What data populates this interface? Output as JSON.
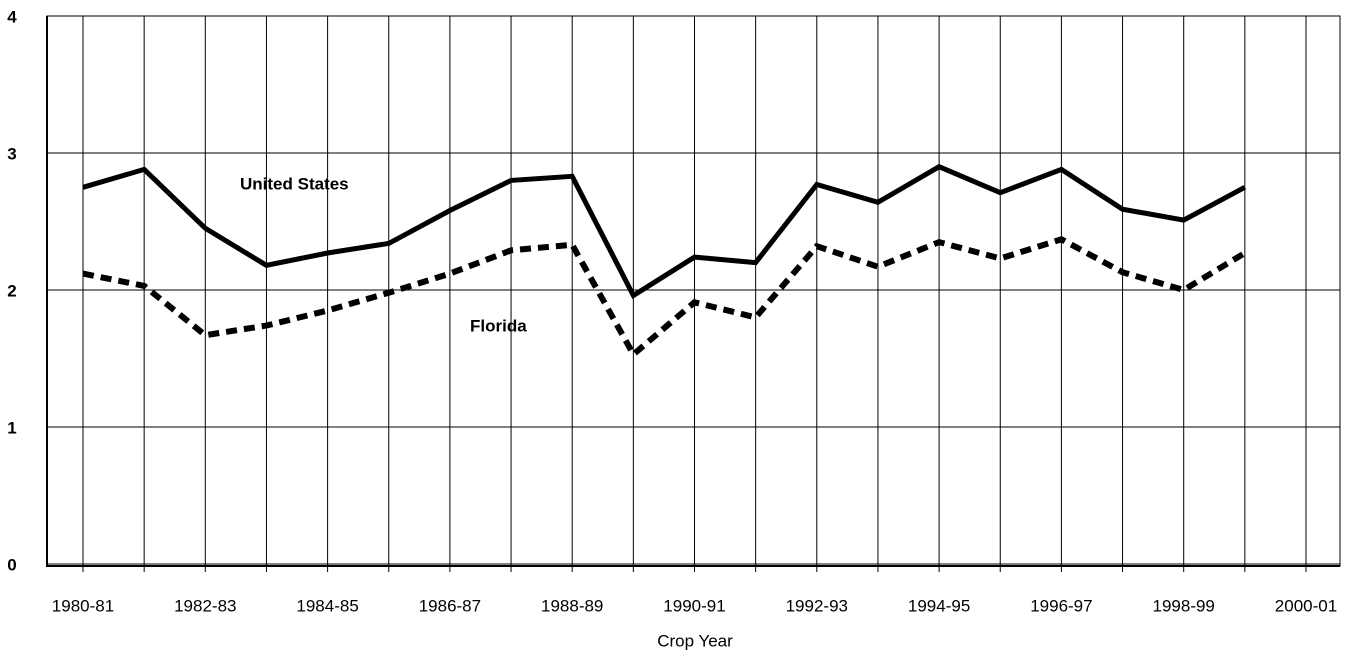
{
  "chart_data": {
    "type": "line",
    "x_label": "Crop Year",
    "categories": [
      "1980-81",
      null,
      "1982-83",
      null,
      "1984-85",
      null,
      "1986-87",
      null,
      "1988-89",
      null,
      "1990-91",
      null,
      "1992-93",
      null,
      "1994-95",
      null,
      "1996-97",
      null,
      "1998-99",
      null,
      "2000-01"
    ],
    "series": [
      {
        "name": "United States",
        "color": "#000000",
        "dash": false,
        "values": [
          2.75,
          2.88,
          2.45,
          2.18,
          2.27,
          2.34,
          2.58,
          2.8,
          2.83,
          1.96,
          2.24,
          2.2,
          2.77,
          2.64,
          2.9,
          2.71,
          2.88,
          2.59,
          2.51,
          2.75,
          null
        ]
      },
      {
        "name": "Florida",
        "color": "#000000",
        "dash": true,
        "values": [
          2.12,
          2.03,
          1.67,
          1.74,
          1.85,
          1.98,
          2.12,
          2.29,
          2.33,
          1.53,
          1.91,
          1.8,
          2.32,
          2.17,
          2.35,
          2.23,
          2.37,
          2.13,
          2.0,
          2.27,
          null
        ]
      }
    ],
    "ylim": [
      0,
      4
    ],
    "yticks": [
      0,
      1,
      2,
      3,
      4
    ],
    "grid": true
  }
}
